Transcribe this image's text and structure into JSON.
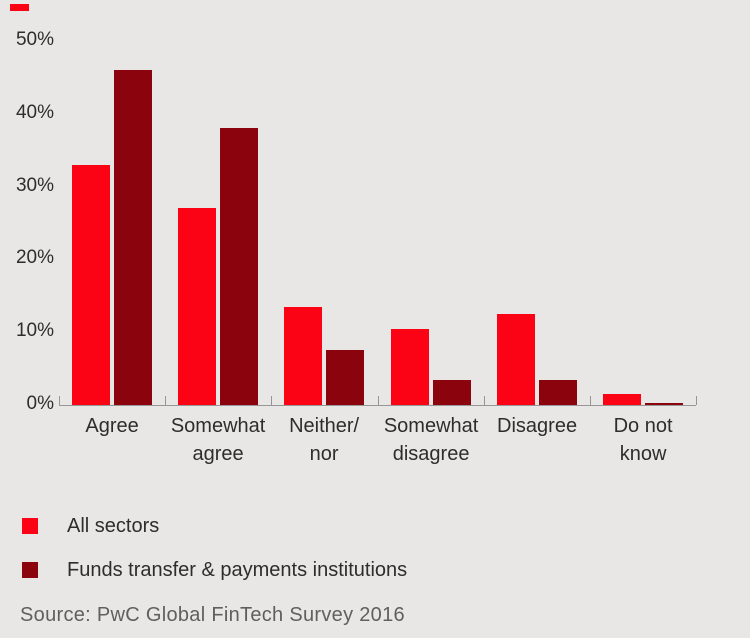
{
  "background_color": "#e9e7e5",
  "accent_dash_color": "#fb0314",
  "axis_color": "#969696",
  "text_color": "#2d2d2d",
  "source_text_color": "#5f5f5f",
  "chart_data": {
    "type": "bar",
    "title": "",
    "xlabel": "",
    "ylabel": "",
    "ylim": [
      0,
      50
    ],
    "grid": false,
    "legend_position": "bottom-left",
    "categories": [
      "Agree",
      "Somewhat agree",
      "Neither/ nor",
      "Somewhat disagree",
      "Disagree",
      "Do not know"
    ],
    "category_lines": [
      [
        "Agree"
      ],
      [
        "Somewhat",
        "agree"
      ],
      [
        "Neither/",
        "nor"
      ],
      [
        "Somewhat",
        "disagree"
      ],
      [
        "Disagree"
      ],
      [
        "Do not",
        "know"
      ]
    ],
    "y_ticks": [
      {
        "value": 0,
        "label": "0%"
      },
      {
        "value": 10,
        "label": "10%"
      },
      {
        "value": 20,
        "label": "20%"
      },
      {
        "value": 30,
        "label": "30%"
      },
      {
        "value": 40,
        "label": "40%"
      },
      {
        "value": 50,
        "label": "50%"
      }
    ],
    "series": [
      {
        "name": "All sectors",
        "color": "#fb0314",
        "values": [
          33,
          27,
          13.5,
          10.5,
          12.5,
          1.5
        ]
      },
      {
        "name": "Funds transfer & payments institutions",
        "color": "#8b040d",
        "values": [
          46,
          38,
          7.5,
          3.5,
          3.5,
          0.3
        ]
      }
    ]
  },
  "legend": {
    "items": [
      {
        "label": "All sectors",
        "color": "#fb0314"
      },
      {
        "label": "Funds transfer & payments institutions",
        "color": "#8b040d"
      }
    ]
  },
  "source": {
    "text": "Source: PwC Global FinTech Survey 2016"
  }
}
